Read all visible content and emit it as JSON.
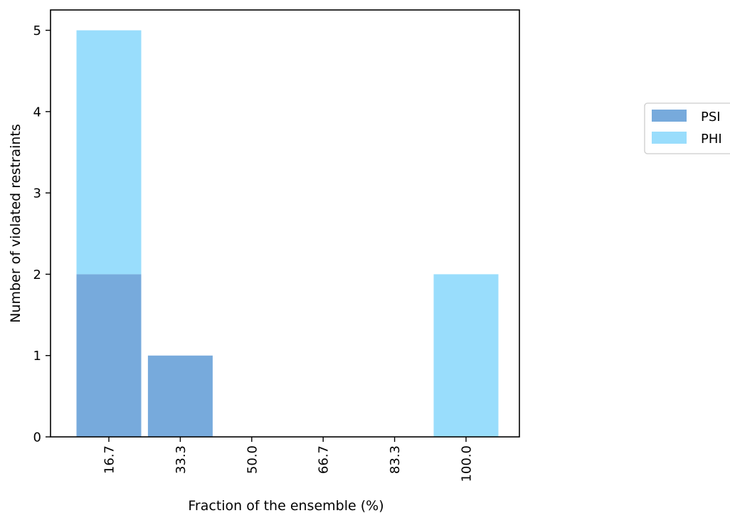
{
  "chart_data": {
    "type": "bar",
    "stacked": true,
    "categories": [
      "16.7",
      "33.3",
      "50.0",
      "66.7",
      "83.3",
      "100.0"
    ],
    "series": [
      {
        "name": "PSI",
        "values": [
          2,
          1,
          0,
          0,
          0,
          0
        ],
        "color": "#77aadc"
      },
      {
        "name": "PHI",
        "values": [
          3,
          0,
          0,
          0,
          0,
          2
        ],
        "color": "#99ddfc"
      }
    ],
    "title": "",
    "xlabel": "Fraction of the ensemble (%)",
    "ylabel": "Number of violated restraints",
    "ylim": [
      0,
      5.25
    ],
    "yticks": [
      "0",
      "1",
      "2",
      "3",
      "4",
      "5"
    ],
    "grid": false,
    "legend": "right"
  }
}
